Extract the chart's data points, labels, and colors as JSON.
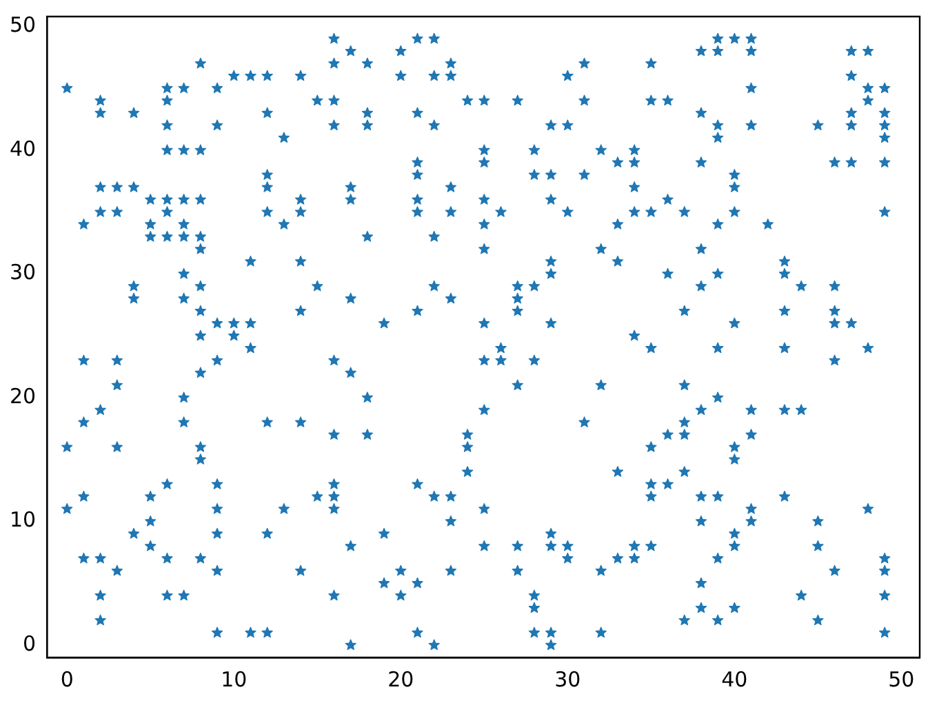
{
  "chart_data": {
    "type": "scatter",
    "xlim": [
      -1.2,
      51.1
    ],
    "ylim": [
      -1,
      50.8
    ],
    "xticks": [
      0,
      10,
      20,
      30,
      40,
      50
    ],
    "yticks": [
      0,
      10,
      20,
      30,
      40,
      50
    ],
    "grid": false,
    "legend": false,
    "marker": "star",
    "series": [
      {
        "color": "#1f77b4",
        "x": [
          0,
          0,
          0,
          1,
          1,
          1,
          1,
          1,
          2,
          2,
          2,
          2,
          2,
          2,
          2,
          2,
          3,
          3,
          3,
          3,
          3,
          3,
          4,
          4,
          4,
          4,
          4,
          5,
          5,
          5,
          5,
          5,
          5,
          6,
          6,
          6,
          6,
          6,
          6,
          6,
          6,
          6,
          6,
          7,
          7,
          7,
          7,
          7,
          7,
          7,
          7,
          7,
          7,
          8,
          8,
          8,
          8,
          8,
          8,
          8,
          8,
          8,
          8,
          8,
          8,
          9,
          9,
          9,
          9,
          9,
          9,
          9,
          9,
          9,
          10,
          10,
          10,
          11,
          11,
          11,
          11,
          11,
          12,
          12,
          12,
          12,
          12,
          12,
          12,
          12,
          13,
          13,
          13,
          14,
          14,
          14,
          14,
          14,
          14,
          14,
          15,
          15,
          15,
          16,
          16,
          16,
          16,
          16,
          16,
          16,
          16,
          16,
          16,
          17,
          17,
          17,
          17,
          17,
          17,
          17,
          18,
          18,
          18,
          18,
          18,
          18,
          19,
          19,
          19,
          20,
          20,
          20,
          20,
          21,
          21,
          21,
          21,
          21,
          21,
          21,
          21,
          21,
          21,
          22,
          22,
          22,
          22,
          22,
          22,
          22,
          23,
          23,
          23,
          23,
          23,
          23,
          23,
          23,
          24,
          24,
          24,
          24,
          25,
          25,
          25,
          25,
          25,
          25,
          25,
          25,
          25,
          25,
          25,
          26,
          26,
          26,
          27,
          27,
          27,
          27,
          27,
          27,
          27,
          28,
          28,
          28,
          28,
          28,
          28,
          28,
          29,
          29,
          29,
          29,
          29,
          29,
          29,
          29,
          29,
          29,
          30,
          30,
          30,
          30,
          30,
          31,
          31,
          31,
          31,
          32,
          32,
          32,
          32,
          32,
          33,
          33,
          33,
          33,
          33,
          34,
          34,
          34,
          34,
          34,
          34,
          34,
          35,
          35,
          35,
          35,
          35,
          35,
          35,
          35,
          36,
          36,
          36,
          36,
          36,
          37,
          37,
          37,
          37,
          37,
          37,
          37,
          38,
          38,
          38,
          38,
          38,
          38,
          38,
          38,
          38,
          38,
          39,
          39,
          39,
          39,
          39,
          39,
          39,
          39,
          39,
          39,
          39,
          40,
          40,
          40,
          40,
          40,
          40,
          40,
          40,
          40,
          40,
          41,
          41,
          41,
          41,
          41,
          41,
          41,
          41,
          42,
          43,
          43,
          43,
          43,
          43,
          43,
          44,
          44,
          44,
          45,
          45,
          45,
          45,
          46,
          46,
          46,
          46,
          46,
          46,
          47,
          47,
          47,
          47,
          47,
          47,
          48,
          48,
          48,
          48,
          48,
          49,
          49,
          49,
          49,
          49,
          49,
          49,
          49,
          49,
          49
        ],
        "values": [
          45,
          16,
          11,
          34,
          23,
          18,
          12,
          7,
          44,
          43,
          37,
          35,
          19,
          7,
          4,
          2,
          37,
          35,
          23,
          21,
          16,
          6,
          43,
          37,
          29,
          28,
          9,
          36,
          34,
          33,
          12,
          10,
          8,
          45,
          44,
          42,
          40,
          36,
          35,
          33,
          13,
          7,
          4,
          45,
          40,
          36,
          34,
          33,
          30,
          28,
          20,
          18,
          4,
          47,
          40,
          36,
          33,
          32,
          29,
          27,
          25,
          22,
          16,
          15,
          7,
          45,
          42,
          26,
          23,
          13,
          11,
          9,
          6,
          1,
          46,
          26,
          25,
          46,
          31,
          26,
          24,
          1,
          46,
          43,
          38,
          37,
          35,
          18,
          9,
          1,
          41,
          34,
          11,
          46,
          36,
          35,
          31,
          27,
          18,
          6,
          44,
          29,
          12,
          49,
          47,
          44,
          42,
          23,
          17,
          13,
          12,
          11,
          4,
          48,
          37,
          36,
          28,
          22,
          8,
          0,
          47,
          43,
          42,
          33,
          20,
          17,
          26,
          9,
          5,
          48,
          46,
          6,
          4,
          49,
          43,
          39,
          38,
          36,
          35,
          27,
          13,
          5,
          1,
          49,
          46,
          42,
          33,
          29,
          12,
          0,
          47,
          46,
          37,
          35,
          28,
          12,
          10,
          6,
          44,
          17,
          16,
          14,
          44,
          40,
          39,
          36,
          34,
          32,
          26,
          23,
          19,
          11,
          8,
          35,
          24,
          23,
          44,
          29,
          28,
          27,
          21,
          8,
          6,
          40,
          38,
          29,
          23,
          4,
          3,
          1,
          42,
          38,
          36,
          31,
          30,
          26,
          9,
          8,
          1,
          0,
          46,
          42,
          35,
          8,
          7,
          47,
          44,
          38,
          18,
          40,
          32,
          21,
          6,
          1,
          39,
          34,
          31,
          14,
          7,
          40,
          39,
          37,
          35,
          25,
          8,
          7,
          47,
          44,
          35,
          24,
          16,
          13,
          12,
          8,
          44,
          36,
          30,
          17,
          13,
          35,
          27,
          21,
          18,
          17,
          14,
          2,
          48,
          43,
          39,
          32,
          29,
          19,
          12,
          10,
          5,
          3,
          49,
          48,
          42,
          41,
          34,
          30,
          24,
          20,
          12,
          7,
          2,
          49,
          38,
          37,
          35,
          26,
          16,
          15,
          9,
          8,
          3,
          49,
          48,
          45,
          42,
          19,
          17,
          11,
          10,
          34,
          31,
          30,
          27,
          24,
          19,
          12,
          29,
          19,
          4,
          42,
          10,
          8,
          2,
          39,
          29,
          27,
          26,
          23,
          6,
          48,
          46,
          43,
          42,
          39,
          26,
          48,
          45,
          44,
          24,
          11,
          45,
          43,
          42,
          41,
          39,
          35,
          7,
          6,
          4,
          1
        ]
      }
    ]
  }
}
